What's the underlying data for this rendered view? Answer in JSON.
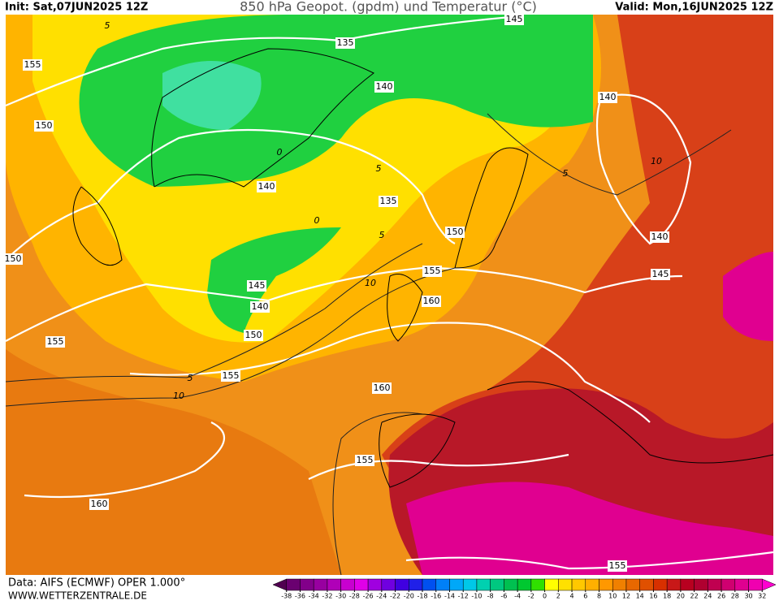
{
  "header": {
    "init": "Init: Sat,07JUN2025 12Z",
    "title": "850 hPa Geopot. (gpdm) und Temperatur (°C)",
    "valid": "Valid: Mon,16JUN2025 12Z"
  },
  "footer": {
    "source": "Data: AIFS (ECMWF) OPER 1.000°",
    "website": "WWW.WETTERZENTRALE.DE"
  },
  "geopotential_labels": [
    145,
    135,
    155,
    140,
    150,
    140,
    135,
    150,
    140,
    150,
    140,
    145,
    145,
    155,
    140,
    160,
    150,
    155,
    155,
    160,
    155,
    160,
    155
  ],
  "temperature_labels": [
    5,
    0,
    5,
    5,
    10,
    5,
    10,
    5,
    10,
    0
  ],
  "colorbar": {
    "ticks": [
      -38,
      -36,
      -34,
      -32,
      -30,
      -28,
      -26,
      -24,
      -22,
      -20,
      -18,
      -16,
      -14,
      -12,
      -10,
      -8,
      -6,
      -4,
      -2,
      0,
      2,
      4,
      6,
      8,
      10,
      12,
      14,
      16,
      18,
      20,
      22,
      24,
      26,
      28,
      30,
      32
    ],
    "colors": [
      "#500050",
      "#6a0070",
      "#82008a",
      "#9800a0",
      "#b000b8",
      "#c800d0",
      "#e000e8",
      "#a000e0",
      "#7000e0",
      "#4000e0",
      "#2020e8",
      "#0050f0",
      "#0080f8",
      "#00a8f8",
      "#00c8e8",
      "#00d0b0",
      "#00c880",
      "#00c050",
      "#00c830",
      "#30e000",
      "#ffff00",
      "#ffe000",
      "#ffc800",
      "#ffb000",
      "#ff9800",
      "#f08000",
      "#e86800",
      "#e05000",
      "#d83000",
      "#c81818",
      "#b80020",
      "#b00030",
      "#c00050",
      "#d00070",
      "#e00090",
      "#f000b0",
      "#ff00d0"
    ]
  }
}
